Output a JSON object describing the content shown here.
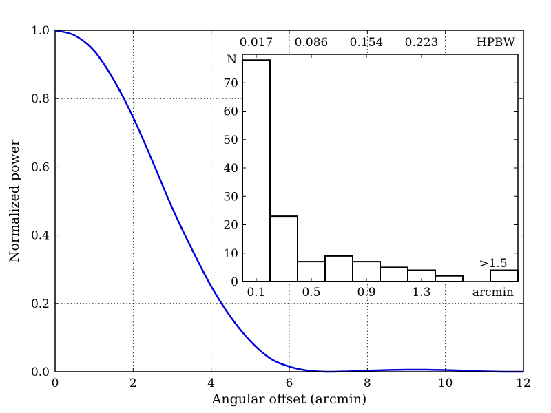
{
  "chart_data": [
    {
      "type": "line",
      "title": "",
      "xlabel": "Angular offset (arcmin)",
      "ylabel": "Normalized power",
      "xlim": [
        0,
        12
      ],
      "ylim": [
        0,
        1.0
      ],
      "xticks": [
        "0",
        "2",
        "4",
        "6",
        "8",
        "10",
        "12"
      ],
      "yticks": [
        "0.0",
        "0.2",
        "0.4",
        "0.6",
        "0.8",
        "1.0"
      ],
      "grid": true,
      "series": [
        {
          "color": "#0000dd",
          "x": [
            0,
            0.5,
            1,
            1.5,
            2,
            2.5,
            3,
            3.5,
            4,
            4.5,
            5,
            5.5,
            6,
            6.5,
            7,
            7.5,
            8,
            8.5,
            9,
            9.5,
            10,
            10.5,
            11,
            11.5,
            12
          ],
          "y": [
            1.0,
            0.985,
            0.94,
            0.855,
            0.745,
            0.615,
            0.48,
            0.36,
            0.25,
            0.16,
            0.09,
            0.04,
            0.015,
            0.003,
            0.0,
            0.001,
            0.003,
            0.005,
            0.006,
            0.006,
            0.005,
            0.003,
            0.001,
            0.0,
            0.0
          ]
        }
      ]
    },
    {
      "type": "bar",
      "title": "",
      "ylabel": "N",
      "xlabel": "arcmin",
      "bins": 10,
      "values": [
        78,
        23,
        7,
        9,
        7,
        5,
        4,
        2,
        0,
        4
      ],
      "ylim": [
        0,
        80
      ],
      "yticks": [
        "0",
        "10",
        "20",
        "30",
        "40",
        "50",
        "60",
        "70"
      ],
      "xticks": [
        "0.1",
        "0.5",
        "0.9",
        "1.3"
      ],
      "top_axis_label": "HPBW",
      "top_ticks": [
        "0.017",
        "0.086",
        "0.154",
        "0.223"
      ],
      "annotation": ">1.5"
    }
  ]
}
